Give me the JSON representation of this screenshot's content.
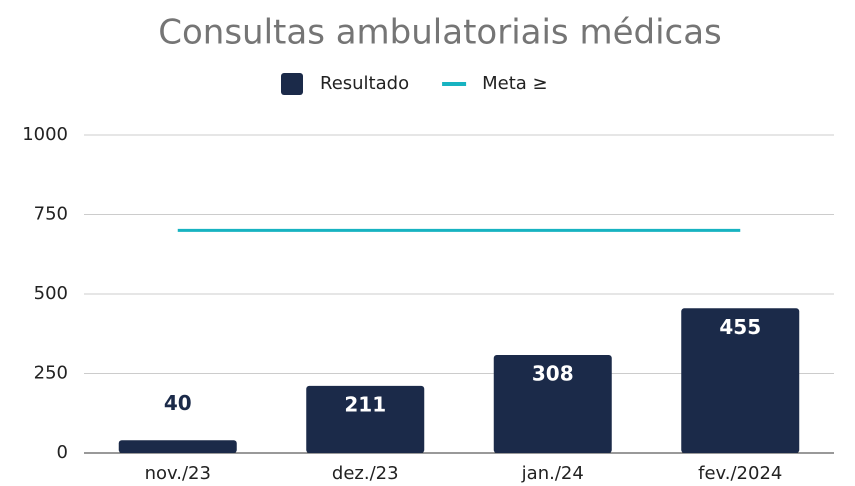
{
  "chart_data": {
    "type": "bar",
    "title": "Consultas ambulatoriais médicas",
    "categories": [
      "nov./23",
      "dez./23",
      "jan./24",
      "fev./2024"
    ],
    "series": [
      {
        "name": "Resultado",
        "type": "bar",
        "color": "#1b2a49",
        "values": [
          40,
          211,
          308,
          455
        ]
      },
      {
        "name": "Meta ≥",
        "type": "line",
        "color": "#17b3c1",
        "values": [
          700,
          700,
          700,
          700
        ]
      }
    ],
    "ylim": [
      0,
      1000
    ],
    "yticks": [
      0,
      250,
      500,
      750,
      1000
    ],
    "grid": true,
    "legend": "top"
  }
}
